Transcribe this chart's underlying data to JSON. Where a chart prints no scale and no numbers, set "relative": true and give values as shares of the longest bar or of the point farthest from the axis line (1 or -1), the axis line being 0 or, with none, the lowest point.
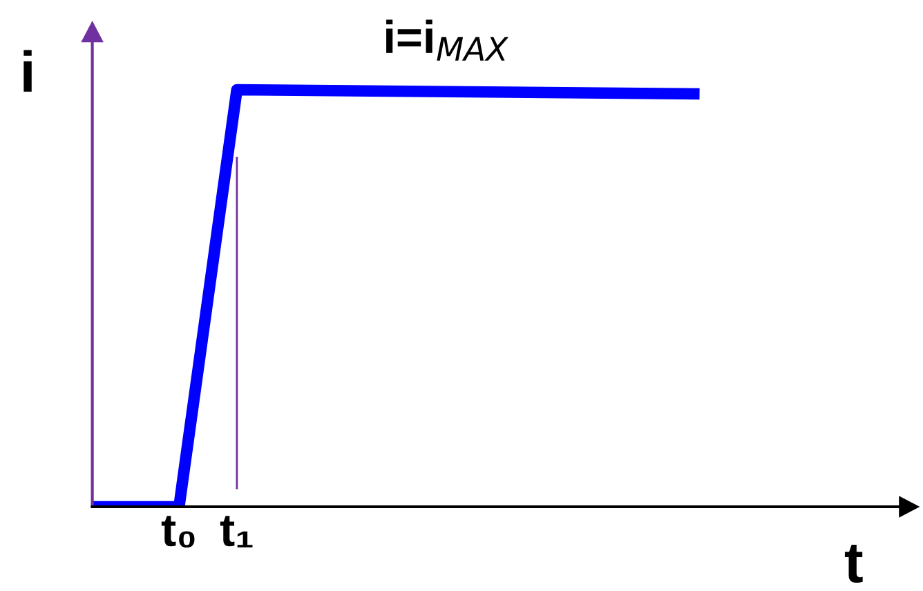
{
  "chart_data": {
    "type": "line",
    "relative": true,
    "xlabel": "t",
    "ylabel": "i",
    "categories": [
      null,
      null,
      null,
      "t₀",
      null,
      "t₁",
      null,
      null,
      null,
      null,
      null,
      null,
      null,
      null,
      null,
      null,
      null,
      null,
      null,
      null,
      null,
      null
    ],
    "series": [
      {
        "color": "#0000ff",
        "values": [
          0,
          null,
          null,
          0,
          null,
          1,
          null,
          null,
          null,
          null,
          null,
          null,
          null,
          null,
          null,
          null,
          null,
          null,
          null,
          null,
          null,
          0.99
        ]
      }
    ],
    "ref_lines": [
      {
        "axis": "x",
        "value": "t₁",
        "color": "#7030a0"
      }
    ],
    "annotations": [
      "i=i$_{MAX}$"
    ],
    "grid": false,
    "legend": false,
    "marker": "none",
    "line_style": "solid"
  }
}
